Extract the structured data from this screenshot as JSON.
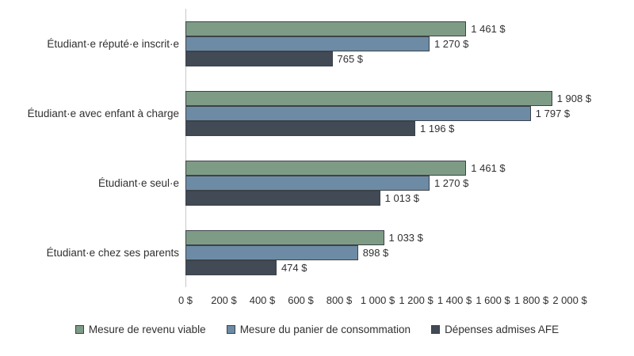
{
  "chart_data": {
    "type": "bar",
    "orientation": "horizontal",
    "title": "",
    "categories": [
      "Étudiant·e réputé·e inscrit·e",
      "Étudiant·e avec enfant à charge",
      "Étudiant·e seul·e",
      "Étudiant·e chez ses parents"
    ],
    "series": [
      {
        "name": "Mesure de revenu viable",
        "color": "#7e9b86",
        "values": [
          1461,
          1908,
          1461,
          1033
        ],
        "value_labels": [
          "1 461 $",
          "1 908 $",
          "1 461 $",
          "1 033 $"
        ]
      },
      {
        "name": "Mesure du panier de consommation",
        "color": "#6d8ba4",
        "values": [
          1270,
          1797,
          1270,
          898
        ],
        "value_labels": [
          "1 270 $",
          "1 797 $",
          "1 270 $",
          "898 $"
        ]
      },
      {
        "name": "Dépenses admises AFE",
        "color": "#414a55",
        "values": [
          765,
          1196,
          1013,
          474
        ],
        "value_labels": [
          "765 $",
          "1 196 $",
          "1 013 $",
          "474 $"
        ]
      }
    ],
    "x_axis": {
      "min": 0,
      "max": 2000,
      "tick_step": 200,
      "tick_labels": [
        "0 $",
        "200 $",
        "400 $",
        "600 $",
        "800 $",
        "1 000 $",
        "1 200 $",
        "1 400 $",
        "1 600 $",
        "1 800 $",
        "2 000 $"
      ]
    },
    "legend": {
      "position": "bottom",
      "entries": [
        "Mesure de revenu viable",
        "Mesure du panier de consommation",
        "Dépenses admises AFE"
      ]
    },
    "grid": false
  },
  "colors": {
    "axis_line": "#c9c9c9",
    "bar_border": "#3c4249",
    "text": "#303030",
    "background": "#ffffff"
  }
}
